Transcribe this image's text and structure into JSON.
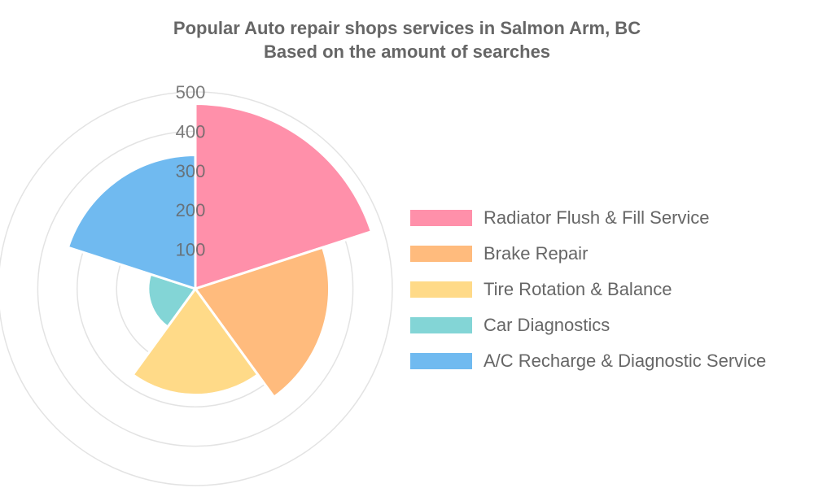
{
  "chart_data": {
    "type": "polarArea",
    "title": "Popular Auto repair shops services in Salmon Arm, BC",
    "subtitle": "Based on the amount of searches",
    "categories": [
      "Radiator Flush & Fill Service",
      "Brake Repair",
      "Tire Rotation & Balance",
      "Car Diagnostics",
      "A/C Recharge & Diagnostic Service"
    ],
    "values": [
      470,
      340,
      270,
      120,
      340
    ],
    "colors": [
      "#ff90aa",
      "#ffbb7d",
      "#ffda88",
      "#83d5d6",
      "#70baf0"
    ],
    "rlim": [
      0,
      500
    ],
    "ticks": [
      "100",
      "200",
      "300",
      "400",
      "500"
    ],
    "grid": true,
    "legend_position": "right"
  }
}
